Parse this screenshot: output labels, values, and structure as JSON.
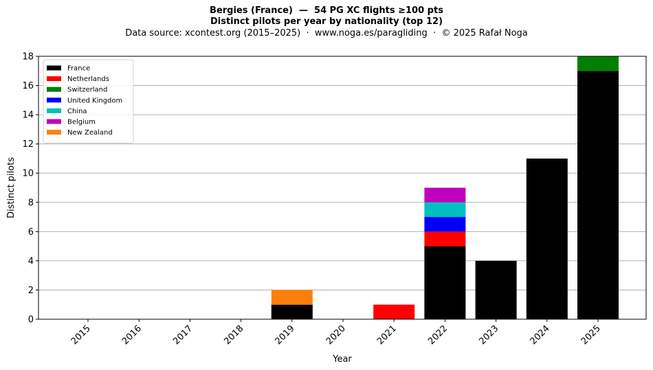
{
  "title": {
    "line1": "Bergies (France)  —  54 PG XC flights ≥100 pts",
    "line2": "Distinct pilots per year by nationality (top 12)",
    "line3": "Data source: xcontest.org (2015–2025)  ·  www.noga.es/paragliding  ·  © 2025 Rafał Noga"
  },
  "chart_data": {
    "type": "bar",
    "stacked": true,
    "xlabel": "Year",
    "ylabel": "Distinct pilots",
    "ylim": [
      0,
      18
    ],
    "yticks": [
      0,
      2,
      4,
      6,
      8,
      10,
      12,
      14,
      16,
      18
    ],
    "grid": "horizontal",
    "legend_position": "top-left",
    "categories": [
      "2015",
      "2016",
      "2017",
      "2018",
      "2019",
      "2020",
      "2021",
      "2022",
      "2023",
      "2024",
      "2025"
    ],
    "series": [
      {
        "name": "France",
        "color": "#000000",
        "values": [
          0,
          0,
          0,
          0,
          1,
          0,
          0,
          5,
          4,
          11,
          17
        ]
      },
      {
        "name": "Netherlands",
        "color": "#ff0000",
        "values": [
          0,
          0,
          0,
          0,
          0,
          0,
          1,
          1,
          0,
          0,
          0
        ]
      },
      {
        "name": "Switzerland",
        "color": "#008000",
        "values": [
          0,
          0,
          0,
          0,
          0,
          0,
          0,
          0,
          0,
          0,
          1
        ]
      },
      {
        "name": "United Kingdom",
        "color": "#0000ff",
        "values": [
          0,
          0,
          0,
          0,
          0,
          0,
          0,
          1,
          0,
          0,
          0
        ]
      },
      {
        "name": "China",
        "color": "#00bfbf",
        "values": [
          0,
          0,
          0,
          0,
          0,
          0,
          0,
          1,
          0,
          0,
          0
        ]
      },
      {
        "name": "Belgium",
        "color": "#bf00bf",
        "values": [
          0,
          0,
          0,
          0,
          0,
          0,
          0,
          1,
          0,
          0,
          0
        ]
      },
      {
        "name": "New Zealand",
        "color": "#ff7f0e",
        "values": [
          0,
          0,
          0,
          0,
          1,
          0,
          0,
          0,
          0,
          0,
          0
        ]
      }
    ]
  }
}
